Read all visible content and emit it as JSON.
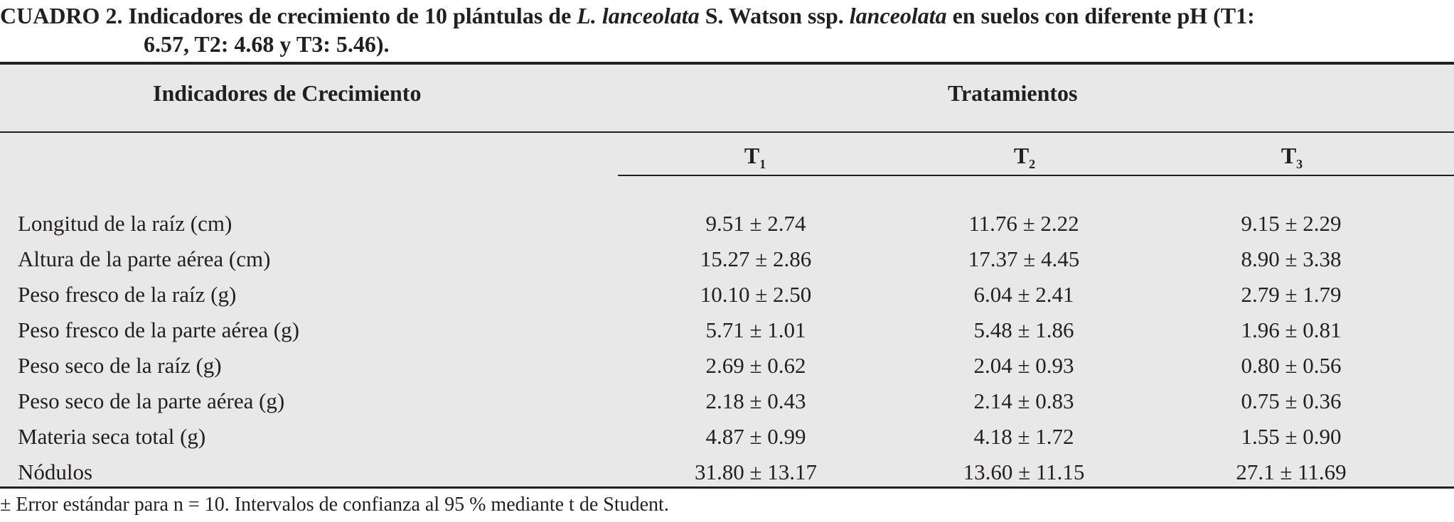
{
  "caption": {
    "label": "CUADRO 2.",
    "text_a": " Indicadores de crecimiento de 10 plántulas de ",
    "italic_a": "L. lanceolata",
    "text_b": " S. Watson ssp. ",
    "italic_b": "lanceolata",
    "text_c": " en suelos con diferente pH (T1:",
    "line2": "6.57, T2: 4.68 y T3: 5.46)."
  },
  "table": {
    "header_left": "Indicadores de Crecimiento",
    "header_right": "Tratamientos",
    "columns": [
      {
        "base": "T",
        "sub": "1"
      },
      {
        "base": "T",
        "sub": "2"
      },
      {
        "base": "T",
        "sub": "3"
      }
    ],
    "rows": [
      {
        "label": "Longitud de la raíz (cm)",
        "values": [
          "9.51 ± 2.74",
          "11.76 ± 2.22",
          "9.15 ± 2.29"
        ]
      },
      {
        "label": "Altura de la parte aérea (cm)",
        "values": [
          "15.27 ± 2.86",
          "17.37 ± 4.45",
          "8.90 ± 3.38"
        ]
      },
      {
        "label": "Peso fresco de la raíz (g)",
        "values": [
          "10.10 ± 2.50",
          "6.04 ± 2.41",
          "2.79 ± 1.79"
        ]
      },
      {
        "label": "Peso fresco de la parte aérea (g)",
        "values": [
          "5.71 ± 1.01",
          "5.48 ± 1.86",
          "1.96 ± 0.81"
        ]
      },
      {
        "label": "Peso seco de la raíz (g)",
        "values": [
          "2.69 ± 0.62",
          "2.04 ± 0.93",
          "0.80 ± 0.56"
        ]
      },
      {
        "label": "Peso seco de la parte aérea (g)",
        "values": [
          "2.18 ± 0.43",
          "2.14 ± 0.83",
          "0.75 ± 0.36"
        ]
      },
      {
        "label": "Materia seca total (g)",
        "values": [
          "4.87 ± 0.99",
          "4.18 ± 1.72",
          "1.55 ± 0.90"
        ]
      },
      {
        "label": "Nódulos",
        "values": [
          "31.80 ± 13.17",
          "13.60 ± 11.15",
          "27.1 ± 11.69"
        ]
      }
    ]
  },
  "footnote": "± Error estándar para n = 10. Intervalos de confianza al 95 % mediante t de Student."
}
